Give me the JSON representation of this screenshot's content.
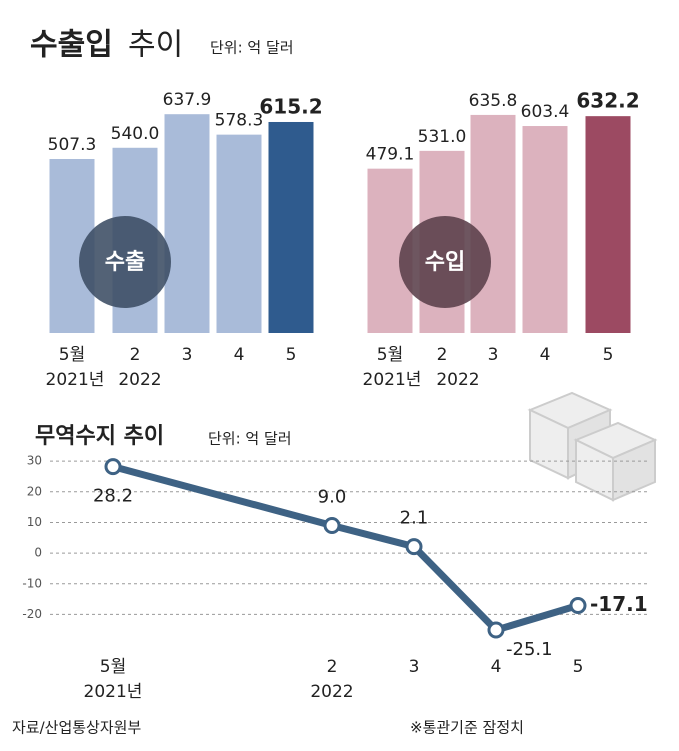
{
  "header": {
    "title_bold": "수출입",
    "title_light": "추이",
    "unit": "단위: 억 달러"
  },
  "chart_data": [
    {
      "type": "bar",
      "label": "수출",
      "categories": [
        "5월",
        "2",
        "3",
        "4",
        "5"
      ],
      "period_labels": [
        "2021년",
        "2022"
      ],
      "values": [
        507.3,
        540.0,
        637.9,
        578.3,
        615.2
      ],
      "value_labels": [
        "507.3",
        "540.0",
        "637.9",
        "578.3",
        "615.2"
      ],
      "color": "#a9bbd9",
      "highlight_color": "#2f5b8e",
      "badge_color": "#3b4c63"
    },
    {
      "type": "bar",
      "label": "수입",
      "categories": [
        "5월",
        "2",
        "3",
        "4",
        "5"
      ],
      "period_labels": [
        "2021년",
        "2022"
      ],
      "values": [
        479.1,
        531.0,
        635.8,
        603.4,
        632.2
      ],
      "value_labels": [
        "479.1",
        "531.0",
        "635.8",
        "603.4",
        "632.2"
      ],
      "color": "#dcb2be",
      "highlight_color": "#9c4a62",
      "badge_color": "#5a3f4a"
    },
    {
      "type": "line",
      "title": "무역수지 추이",
      "subtitle": "단위: 억 달러",
      "categories": [
        "5월",
        "2",
        "3",
        "4",
        "5"
      ],
      "period_labels": [
        "2021년",
        "2022"
      ],
      "values": [
        28.2,
        9.0,
        2.1,
        -25.1,
        -17.1
      ],
      "value_labels": [
        "28.2",
        "9.0",
        "2.1",
        "-25.1",
        "-17.1"
      ],
      "ylim": [
        -29,
        32
      ],
      "yticks": [
        30,
        20,
        10,
        0,
        -10,
        -20
      ],
      "grid": true,
      "color": "#3e6284"
    }
  ],
  "source": "자료/산업통상자원부",
  "note": "※통관기준 잠정치"
}
